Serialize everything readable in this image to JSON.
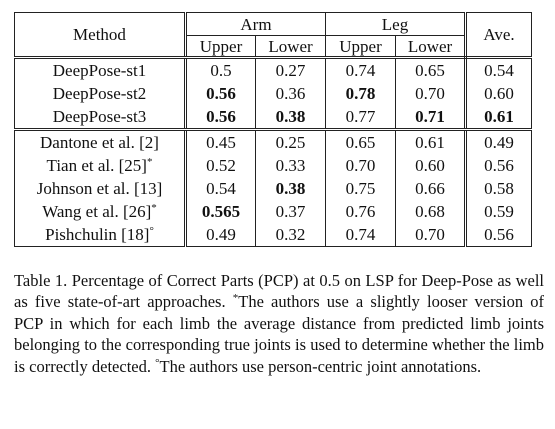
{
  "table": {
    "header": {
      "method": "Method",
      "arm": "Arm",
      "leg": "Leg",
      "ave": "Ave.",
      "upper": "Upper",
      "lower": "Lower"
    },
    "rows": [
      {
        "method": "DeepPose-st1",
        "sup": "",
        "values": [
          "0.5",
          "0.27",
          "0.74",
          "0.65",
          "0.54"
        ],
        "bold": [
          false,
          false,
          false,
          false,
          false
        ]
      },
      {
        "method": "DeepPose-st2",
        "sup": "",
        "values": [
          "0.56",
          "0.36",
          "0.78",
          "0.70",
          "0.60"
        ],
        "bold": [
          true,
          false,
          true,
          false,
          false
        ]
      },
      {
        "method": "DeepPose-st3",
        "sup": "",
        "values": [
          "0.56",
          "0.38",
          "0.77",
          "0.71",
          "0.61"
        ],
        "bold": [
          true,
          true,
          false,
          true,
          true
        ]
      },
      {
        "method": "Dantone et al. [2]",
        "sup": "",
        "values": [
          "0.45",
          "0.25",
          "0.65",
          "0.61",
          "0.49"
        ],
        "bold": [
          false,
          false,
          false,
          false,
          false
        ]
      },
      {
        "method": "Tian et al. [25]",
        "sup": "*",
        "values": [
          "0.52",
          "0.33",
          "0.70",
          "0.60",
          "0.56"
        ],
        "bold": [
          false,
          false,
          false,
          false,
          false
        ]
      },
      {
        "method": "Johnson et al. [13]",
        "sup": "",
        "values": [
          "0.54",
          "0.38",
          "0.75",
          "0.66",
          "0.58"
        ],
        "bold": [
          false,
          true,
          false,
          false,
          false
        ]
      },
      {
        "method": "Wang et al. [26]",
        "sup": "*",
        "values": [
          "0.565",
          "0.37",
          "0.76",
          "0.68",
          "0.59"
        ],
        "bold": [
          true,
          false,
          false,
          false,
          false
        ]
      },
      {
        "method": "Pishchulin [18]",
        "sup": "°",
        "values": [
          "0.49",
          "0.32",
          "0.74",
          "0.70",
          "0.56"
        ],
        "bold": [
          false,
          false,
          false,
          false,
          false
        ]
      }
    ]
  },
  "caption": {
    "part1": "Table 1. Percentage of Correct Parts (PCP) at 0.5 on LSP for Deep-Pose as well as five state-of-art approaches.",
    "star": "*",
    "part2": "The authors use a slightly looser version of PCP in which for each limb the average distance from predicted limb joints belonging to the corresponding true joints is used to determine whether the limb is correctly detected.",
    "circ": "°",
    "part3": "The authors use person-centric joint annotations."
  }
}
